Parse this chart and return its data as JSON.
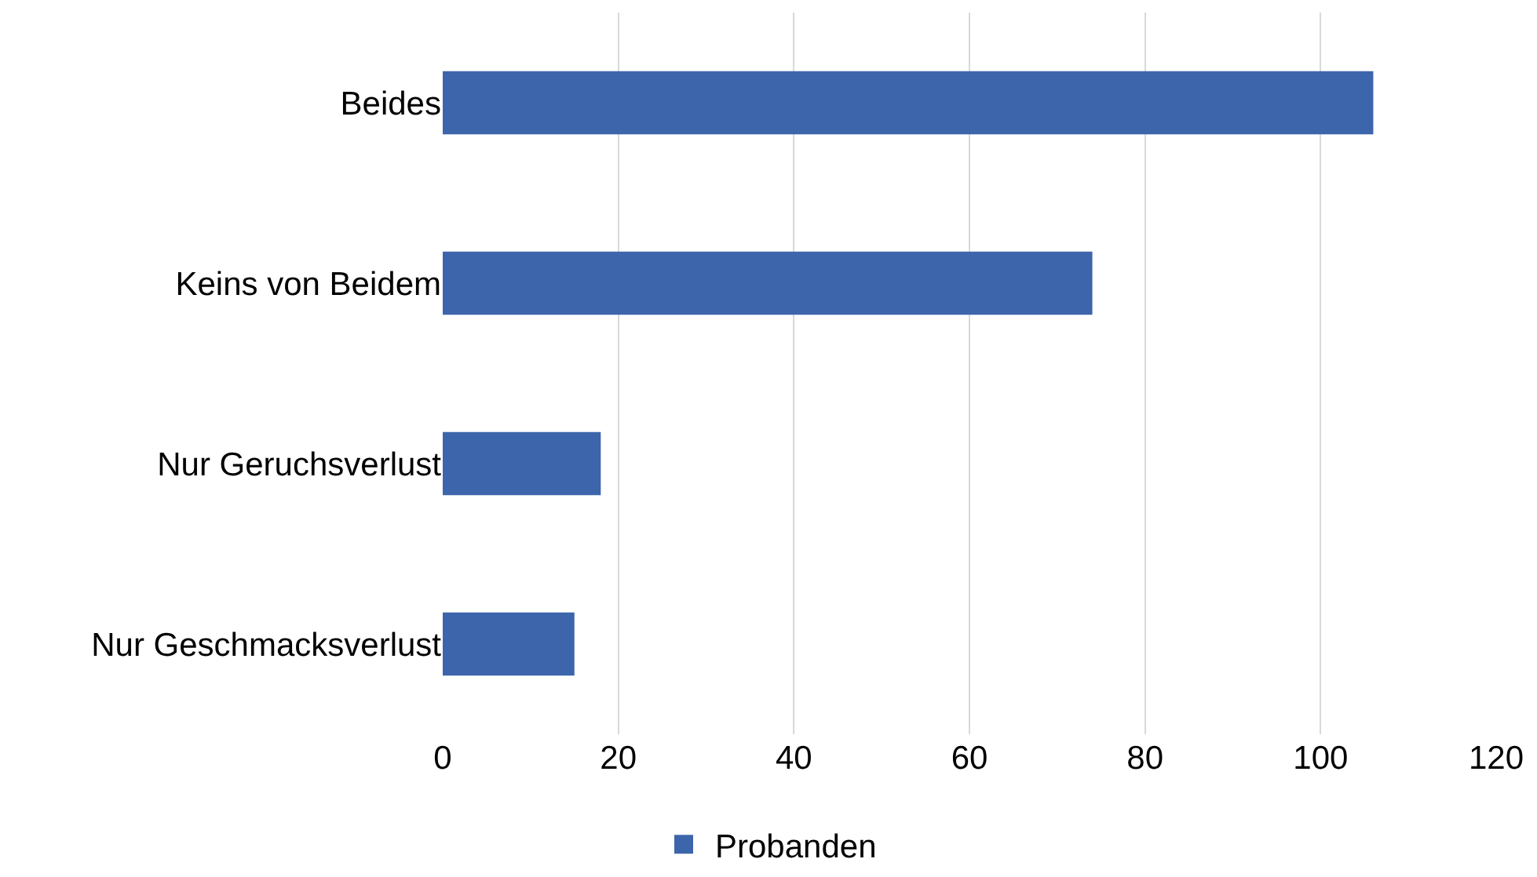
{
  "chart_data": {
    "type": "bar",
    "orientation": "horizontal",
    "categories": [
      "Beides",
      "Keins von Beidem",
      "Nur Geruchsverlust",
      "Nur Geschmacksverlust"
    ],
    "series": [
      {
        "name": "Probanden",
        "color": "#3c65ab",
        "values": [
          106,
          74,
          18,
          15
        ]
      }
    ],
    "xlim": [
      0,
      120
    ],
    "xticks": [
      0,
      20,
      40,
      60,
      80,
      100,
      120
    ],
    "grid": "x",
    "legend": "bottom"
  }
}
